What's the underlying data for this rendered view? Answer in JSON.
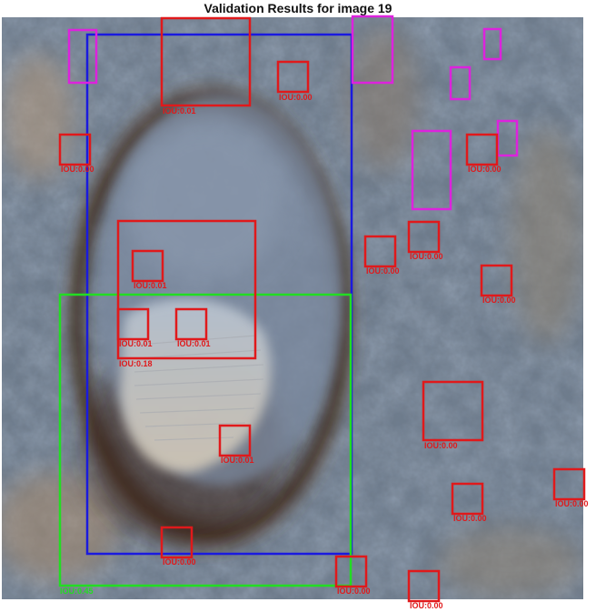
{
  "title": "Validation Results for image 19",
  "colors": {
    "prediction": "#e0191b",
    "ground_truth": "#1a1adf",
    "match": "#22dd22",
    "other": "#dd22dd"
  },
  "predictions": [
    {
      "label": "IOU:0.01"
    },
    {
      "label": "IOU:0.00"
    },
    {
      "label": "IOU:0.00"
    },
    {
      "label": "IOU:0.00"
    },
    {
      "label": "IOU:0.00"
    },
    {
      "label": "IOU:0.00"
    },
    {
      "label": "IOU:0.00"
    },
    {
      "label": "IOU:0.00"
    },
    {
      "label": "IOU:0.18"
    },
    {
      "label": "IOU:0.01"
    },
    {
      "label": "IOU:0.01"
    },
    {
      "label": "IOU:0.01"
    },
    {
      "label": "IOU:0.01"
    },
    {
      "label": "IOU:0.00"
    },
    {
      "label": "IOU:0.00"
    },
    {
      "label": "IOU:0.00"
    },
    {
      "label": "IOU:0.00"
    },
    {
      "label": "IOU:0.00"
    },
    {
      "label": "IOU:0.00"
    },
    {
      "label": "IOU:0.00"
    }
  ],
  "match_label": "IOU:0.45"
}
